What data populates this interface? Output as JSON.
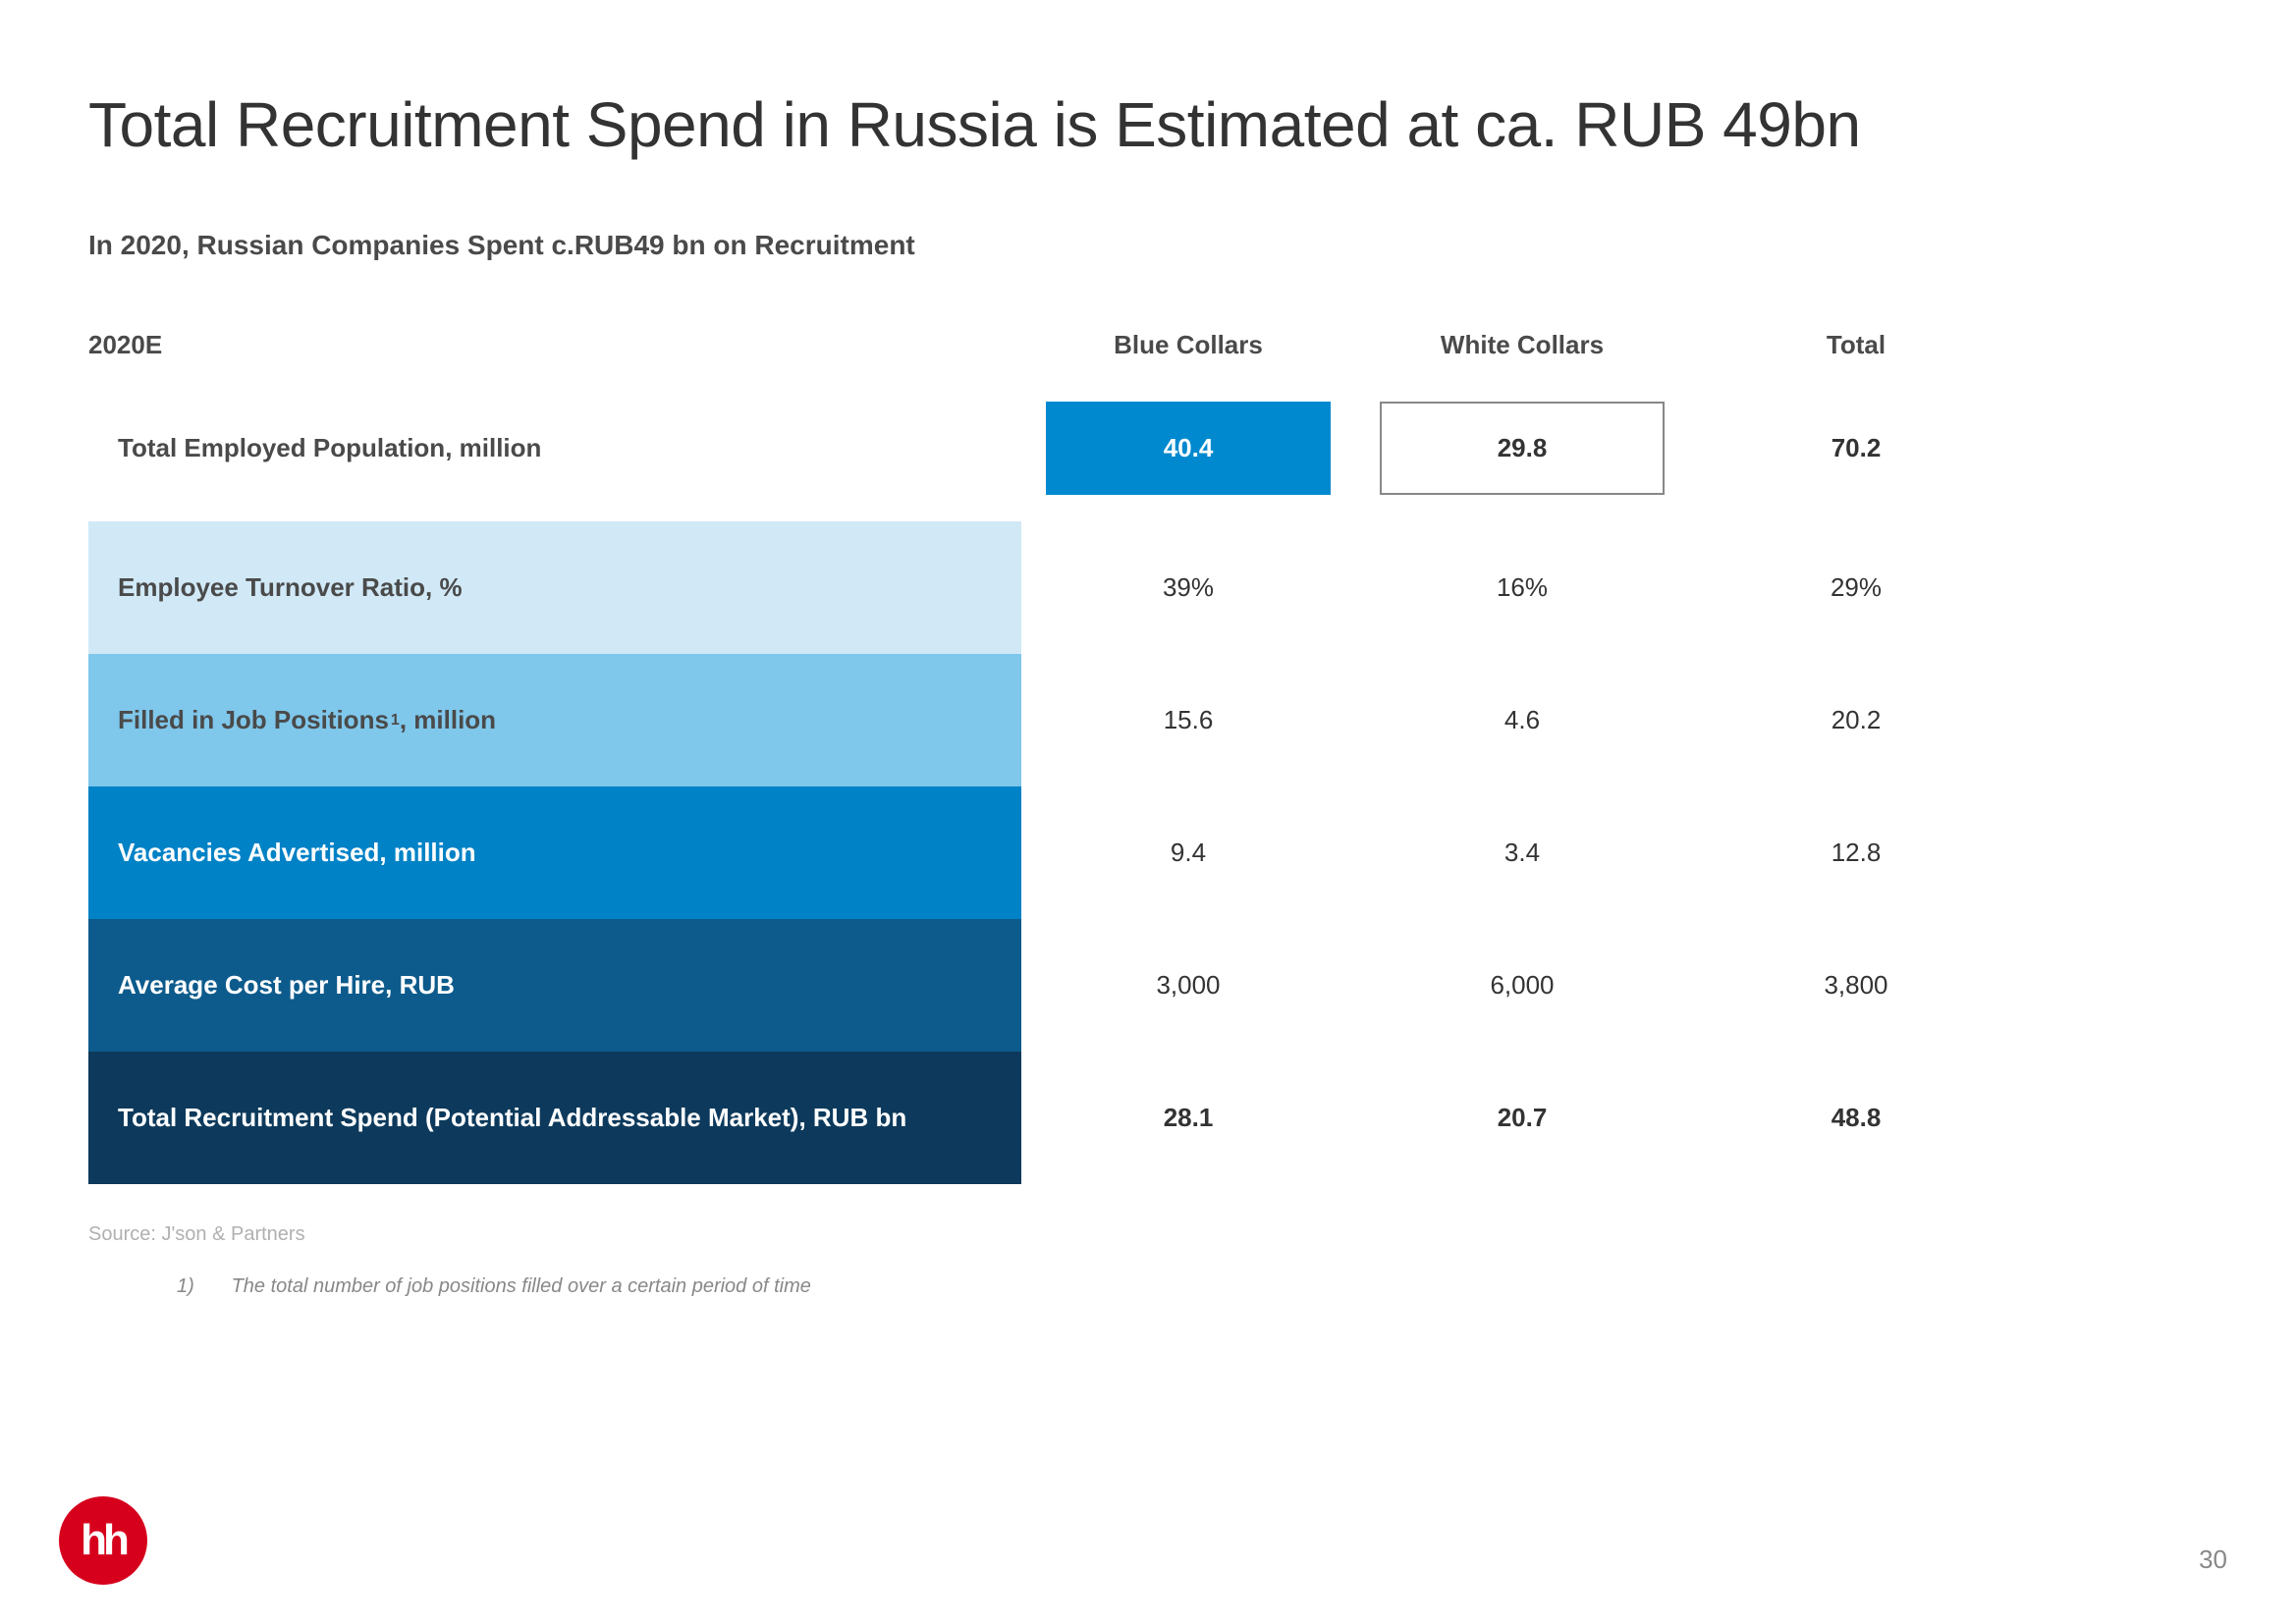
{
  "title": "Total Recruitment Spend in Russia is Estimated at ca. RUB 49bn",
  "subtitle": "In 2020, Russian Companies Spent c.RUB49 bn on Recruitment",
  "table": {
    "corner_label": "2020E",
    "columns": [
      "Blue Collars",
      "White Collars",
      "Total"
    ],
    "rows": [
      {
        "label": "Total Employed Population, million",
        "label_bg": "#ffffff",
        "label_color": "#4a4a4a",
        "values": [
          "40.4",
          "29.8",
          "70.2"
        ],
        "first_row_boxes": true
      },
      {
        "label": "Employee Turnover Ratio, %",
        "label_bg": "#d1e9f7",
        "label_color": "#4a4a4a",
        "values": [
          "39%",
          "16%",
          "29%"
        ]
      },
      {
        "label": "Filled in Job Positions¹, million",
        "label_bg": "#7fc7eb",
        "label_color": "#4a4a4a",
        "values": [
          "15.6",
          "4.6",
          "20.2"
        ],
        "has_sup": true,
        "label_plain": "Filled in Job Positions",
        "sup_text": "1",
        "label_suffix": ", million"
      },
      {
        "label": "Vacancies Advertised, million",
        "label_bg": "#0082c6",
        "label_color": "#ffffff",
        "values": [
          "9.4",
          "3.4",
          "12.8"
        ]
      },
      {
        "label": "Average Cost per Hire, RUB",
        "label_bg": "#0d5b8c",
        "label_color": "#ffffff",
        "values": [
          "3,000",
          "6,000",
          "3,800"
        ]
      },
      {
        "label": "Total Recruitment Spend (Potential Addressable Market), RUB bn",
        "label_bg": "#0d3a5c",
        "label_color": "#ffffff",
        "values": [
          "28.1",
          "20.7",
          "48.8"
        ],
        "bold_values": true
      }
    ]
  },
  "source": "Source: J'son & Partners",
  "footnote_num": "1)",
  "footnote_text": "The total number of job positions filled over a certain period of time",
  "logo_text": "hh",
  "page_number": "30",
  "colors": {
    "title": "#333333",
    "subtitle": "#4a4a4a",
    "box_blue_bg": "#0089cf",
    "box_border": "#888888",
    "logo_bg": "#d6001c"
  }
}
